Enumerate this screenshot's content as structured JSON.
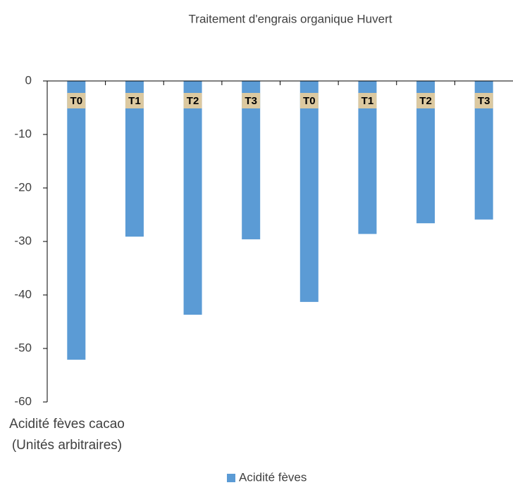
{
  "chart_data": {
    "type": "bar",
    "title": "Traitement d'engrais organique Huvert",
    "y_label": "Acidité fèves cacao (Unités arbitraires)",
    "categories": [
      "T0",
      "T1",
      "T2",
      "T3",
      "T0",
      "T1",
      "T2",
      "T3"
    ],
    "series": [
      {
        "name": "Acidité fèves",
        "color": "#5b9bd5",
        "values": [
          -52.1,
          -29.1,
          -43.7,
          -29.6,
          -41.3,
          -28.6,
          -26.6,
          -25.9
        ]
      }
    ],
    "ylim": [
      -60,
      0
    ],
    "yticks": [
      -60,
      -50,
      -40,
      -30,
      -20,
      -10,
      0
    ],
    "grid": false,
    "legend": "bottom"
  }
}
